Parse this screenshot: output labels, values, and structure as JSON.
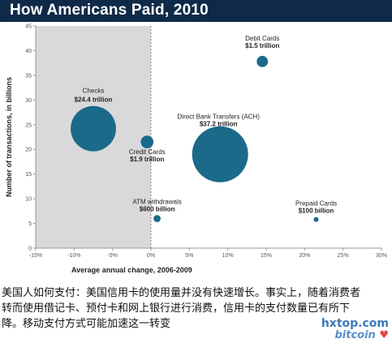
{
  "title": "How Americans Paid, 2010",
  "chart_data": {
    "type": "scatter",
    "title": "How Americans Paid, 2010",
    "xlabel": "Average annual change, 2006-2009",
    "ylabel": "Number of transactions, in billions",
    "xlim": [
      -15,
      30
    ],
    "ylim": [
      0,
      45
    ],
    "x_ticks": [
      "-15%",
      "-10%",
      "-5%",
      "0%",
      "5%",
      "10%",
      "15%",
      "20%",
      "25%",
      "30%"
    ],
    "y_ticks": [
      "0",
      "5",
      "10",
      "15",
      "20",
      "25",
      "30",
      "35",
      "40",
      "45"
    ],
    "shaded_region": [
      -15,
      0
    ],
    "bubble_color": "#1b6a8a",
    "points": [
      {
        "name": "Checks",
        "value_label": "$24.4 trillion",
        "x": -7.5,
        "y": 24.2,
        "size": 24.4
      },
      {
        "name": "Credit Cards",
        "value_label": "$1.9 trillion",
        "x": -0.5,
        "y": 21.5,
        "size": 1.9
      },
      {
        "name": "Debit Cards",
        "value_label": "$1.5 trillion",
        "x": 14.5,
        "y": 37.8,
        "size": 1.5
      },
      {
        "name": "Direct Bank Transfers (ACH)",
        "value_label": "$37.2 trillion",
        "x": 9,
        "y": 19,
        "size": 37.2
      },
      {
        "name": "ATM withdrawals",
        "value_label": "$600 billion",
        "x": 0.8,
        "y": 6,
        "size": 0.6
      },
      {
        "name": "Prepaid Cards",
        "value_label": "$100 billion",
        "x": 21.5,
        "y": 5.8,
        "size": 0.1
      }
    ]
  },
  "caption": {
    "lines": [
      "美国人如何支付：美国信用卡的使用量并没有快速增长。事实上，随着消费者",
      "转而使用借记卡、预付卡和网上银行进行消费，信用卡的支付数量已有所下",
      "降。移动支付方式可能加速这一转变"
    ]
  },
  "watermark": {
    "line1": "hxtop.com",
    "line2": "bitcoin",
    "heart": "♥"
  }
}
